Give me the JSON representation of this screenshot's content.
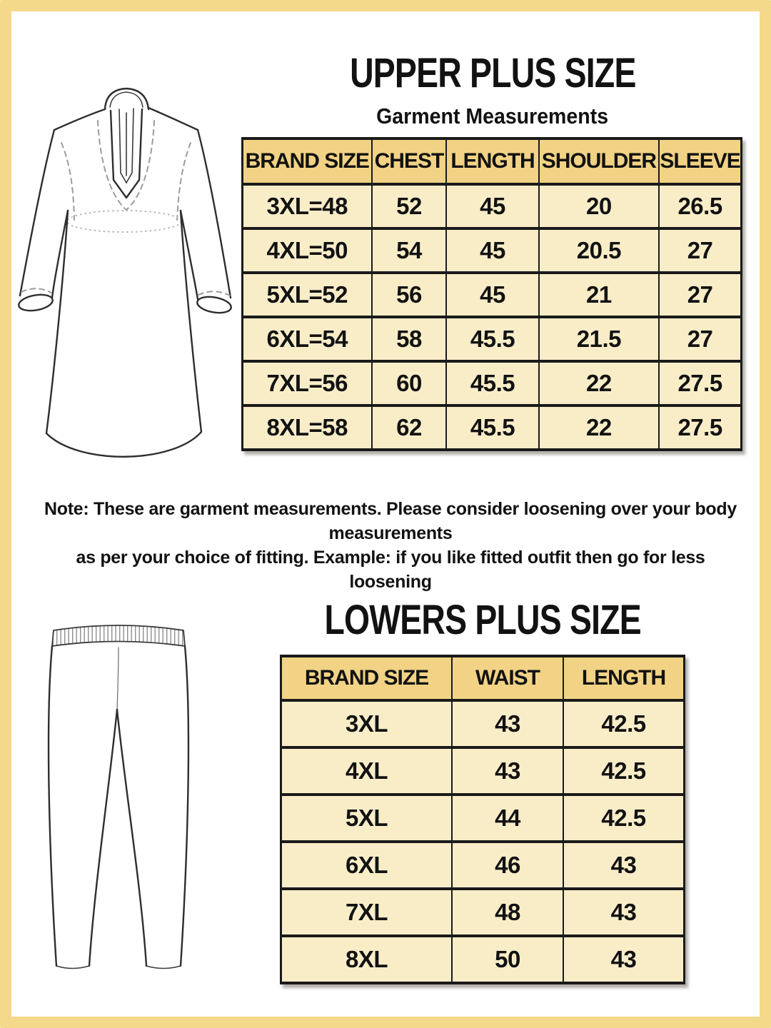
{
  "colors": {
    "frame": "#F5D98B",
    "table_header_bg": "#F2D385",
    "table_cell_bg": "#F9EDC8",
    "text": "#121212",
    "grid_border": "#1A1A1A"
  },
  "upper": {
    "title": "UPPER PLUS SIZE",
    "subtitle": "Garment Measurements",
    "illustration": "kurta-line-drawing",
    "table": {
      "headers": [
        "BRAND SIZE",
        "CHEST",
        "LENGTH",
        "SHOULDER",
        "SLEEVE"
      ],
      "rows": [
        [
          "3XL=48",
          "52",
          "45",
          "20",
          "26.5"
        ],
        [
          "4XL=50",
          "54",
          "45",
          "20.5",
          "27"
        ],
        [
          "5XL=52",
          "56",
          "45",
          "21",
          "27"
        ],
        [
          "6XL=54",
          "58",
          "45.5",
          "21.5",
          "27"
        ],
        [
          "7XL=56",
          "60",
          "45.5",
          "22",
          "27.5"
        ],
        [
          "8XL=58",
          "62",
          "45.5",
          "22",
          "27.5"
        ]
      ]
    }
  },
  "note": {
    "line1": "Note: These are garment measurements. Please consider loosening over your body measurements",
    "line2": "as per your choice of fitting. Example: if you like fitted outfit then go for less loosening"
  },
  "lower": {
    "title": "LOWERS PLUS SIZE",
    "illustration": "leggings-line-drawing",
    "table": {
      "headers": [
        "BRAND SIZE",
        "WAIST",
        "LENGTH"
      ],
      "rows": [
        [
          "3XL",
          "43",
          "42.5"
        ],
        [
          "4XL",
          "43",
          "42.5"
        ],
        [
          "5XL",
          "44",
          "42.5"
        ],
        [
          "6XL",
          "46",
          "43"
        ],
        [
          "7XL",
          "48",
          "43"
        ],
        [
          "8XL",
          "50",
          "43"
        ]
      ]
    }
  }
}
